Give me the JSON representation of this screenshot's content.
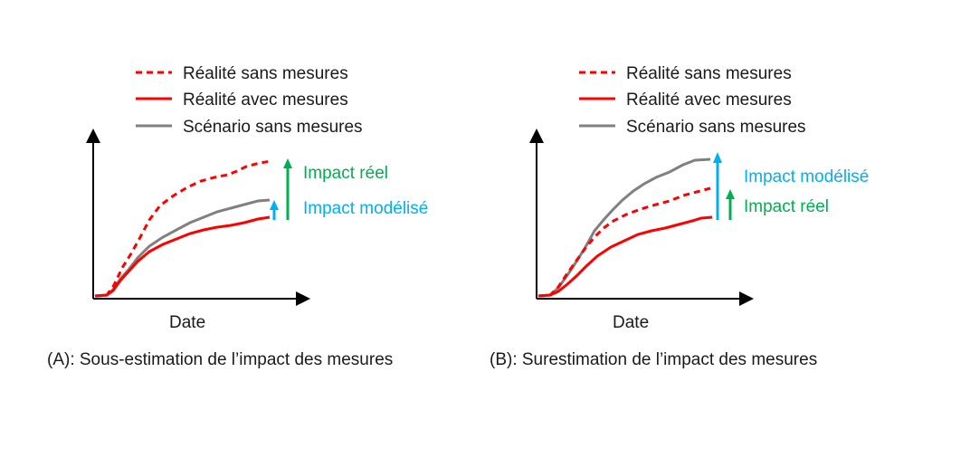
{
  "colors": {
    "sans_mesures": "#ff0000",
    "avec_mesures": "#ff0000",
    "scenario": "#808080",
    "impact_reel": "#00b050",
    "impact_modelise": "#00b0f0",
    "axis": "#000000"
  },
  "panels": [
    {
      "id": "A",
      "legend": [
        "Réalité sans mesures",
        "Réalité avec mesures",
        "Scénario sans mesures"
      ],
      "xlabel": "Date",
      "caption": "(A): Sous-estimation de l’impact des mesures",
      "annotations": {
        "top_label": "Impact réel",
        "bottom_label": "Impact modélisé"
      }
    },
    {
      "id": "B",
      "legend": [
        "Réalité sans mesures",
        "Réalité avec mesures",
        "Scénario sans mesures"
      ],
      "xlabel": "Date",
      "caption": "(B): Surestimation de l’impact des mesures",
      "annotations": {
        "top_label": "Impact modélisé",
        "bottom_label": "Impact réel"
      }
    }
  ]
}
